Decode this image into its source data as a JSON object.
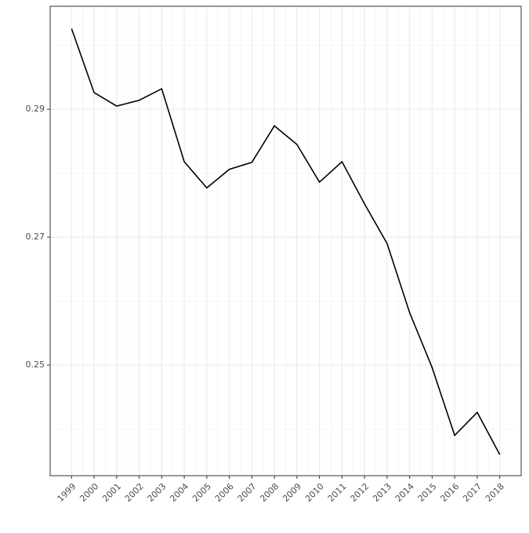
{
  "chart_data": {
    "type": "line",
    "x": [
      1999,
      2000,
      2001,
      2002,
      2003,
      2004,
      2005,
      2006,
      2007,
      2008,
      2009,
      2010,
      2011,
      2012,
      2013,
      2014,
      2015,
      2016,
      2017,
      2018
    ],
    "series": [
      {
        "color": "#000000",
        "values": [
          0.3026,
          0.2926,
          0.2905,
          0.2914,
          0.2932,
          0.2818,
          0.2777,
          0.2806,
          0.2817,
          0.2874,
          0.2845,
          0.2786,
          0.2818,
          0.2752,
          0.269,
          0.2582,
          0.2496,
          0.239,
          0.2426,
          0.236
        ]
      }
    ],
    "xlim": [
      1998.05,
      2018.95
    ],
    "xticks": [
      1999,
      2000,
      2001,
      2002,
      2003,
      2004,
      2005,
      2006,
      2007,
      2008,
      2009,
      2010,
      2011,
      2012,
      2013,
      2014,
      2015,
      2016,
      2017,
      2018
    ],
    "ylim": [
      0.2327,
      0.3061
    ],
    "yticks": [
      0.25,
      0.27,
      0.29
    ],
    "grid": true
  }
}
